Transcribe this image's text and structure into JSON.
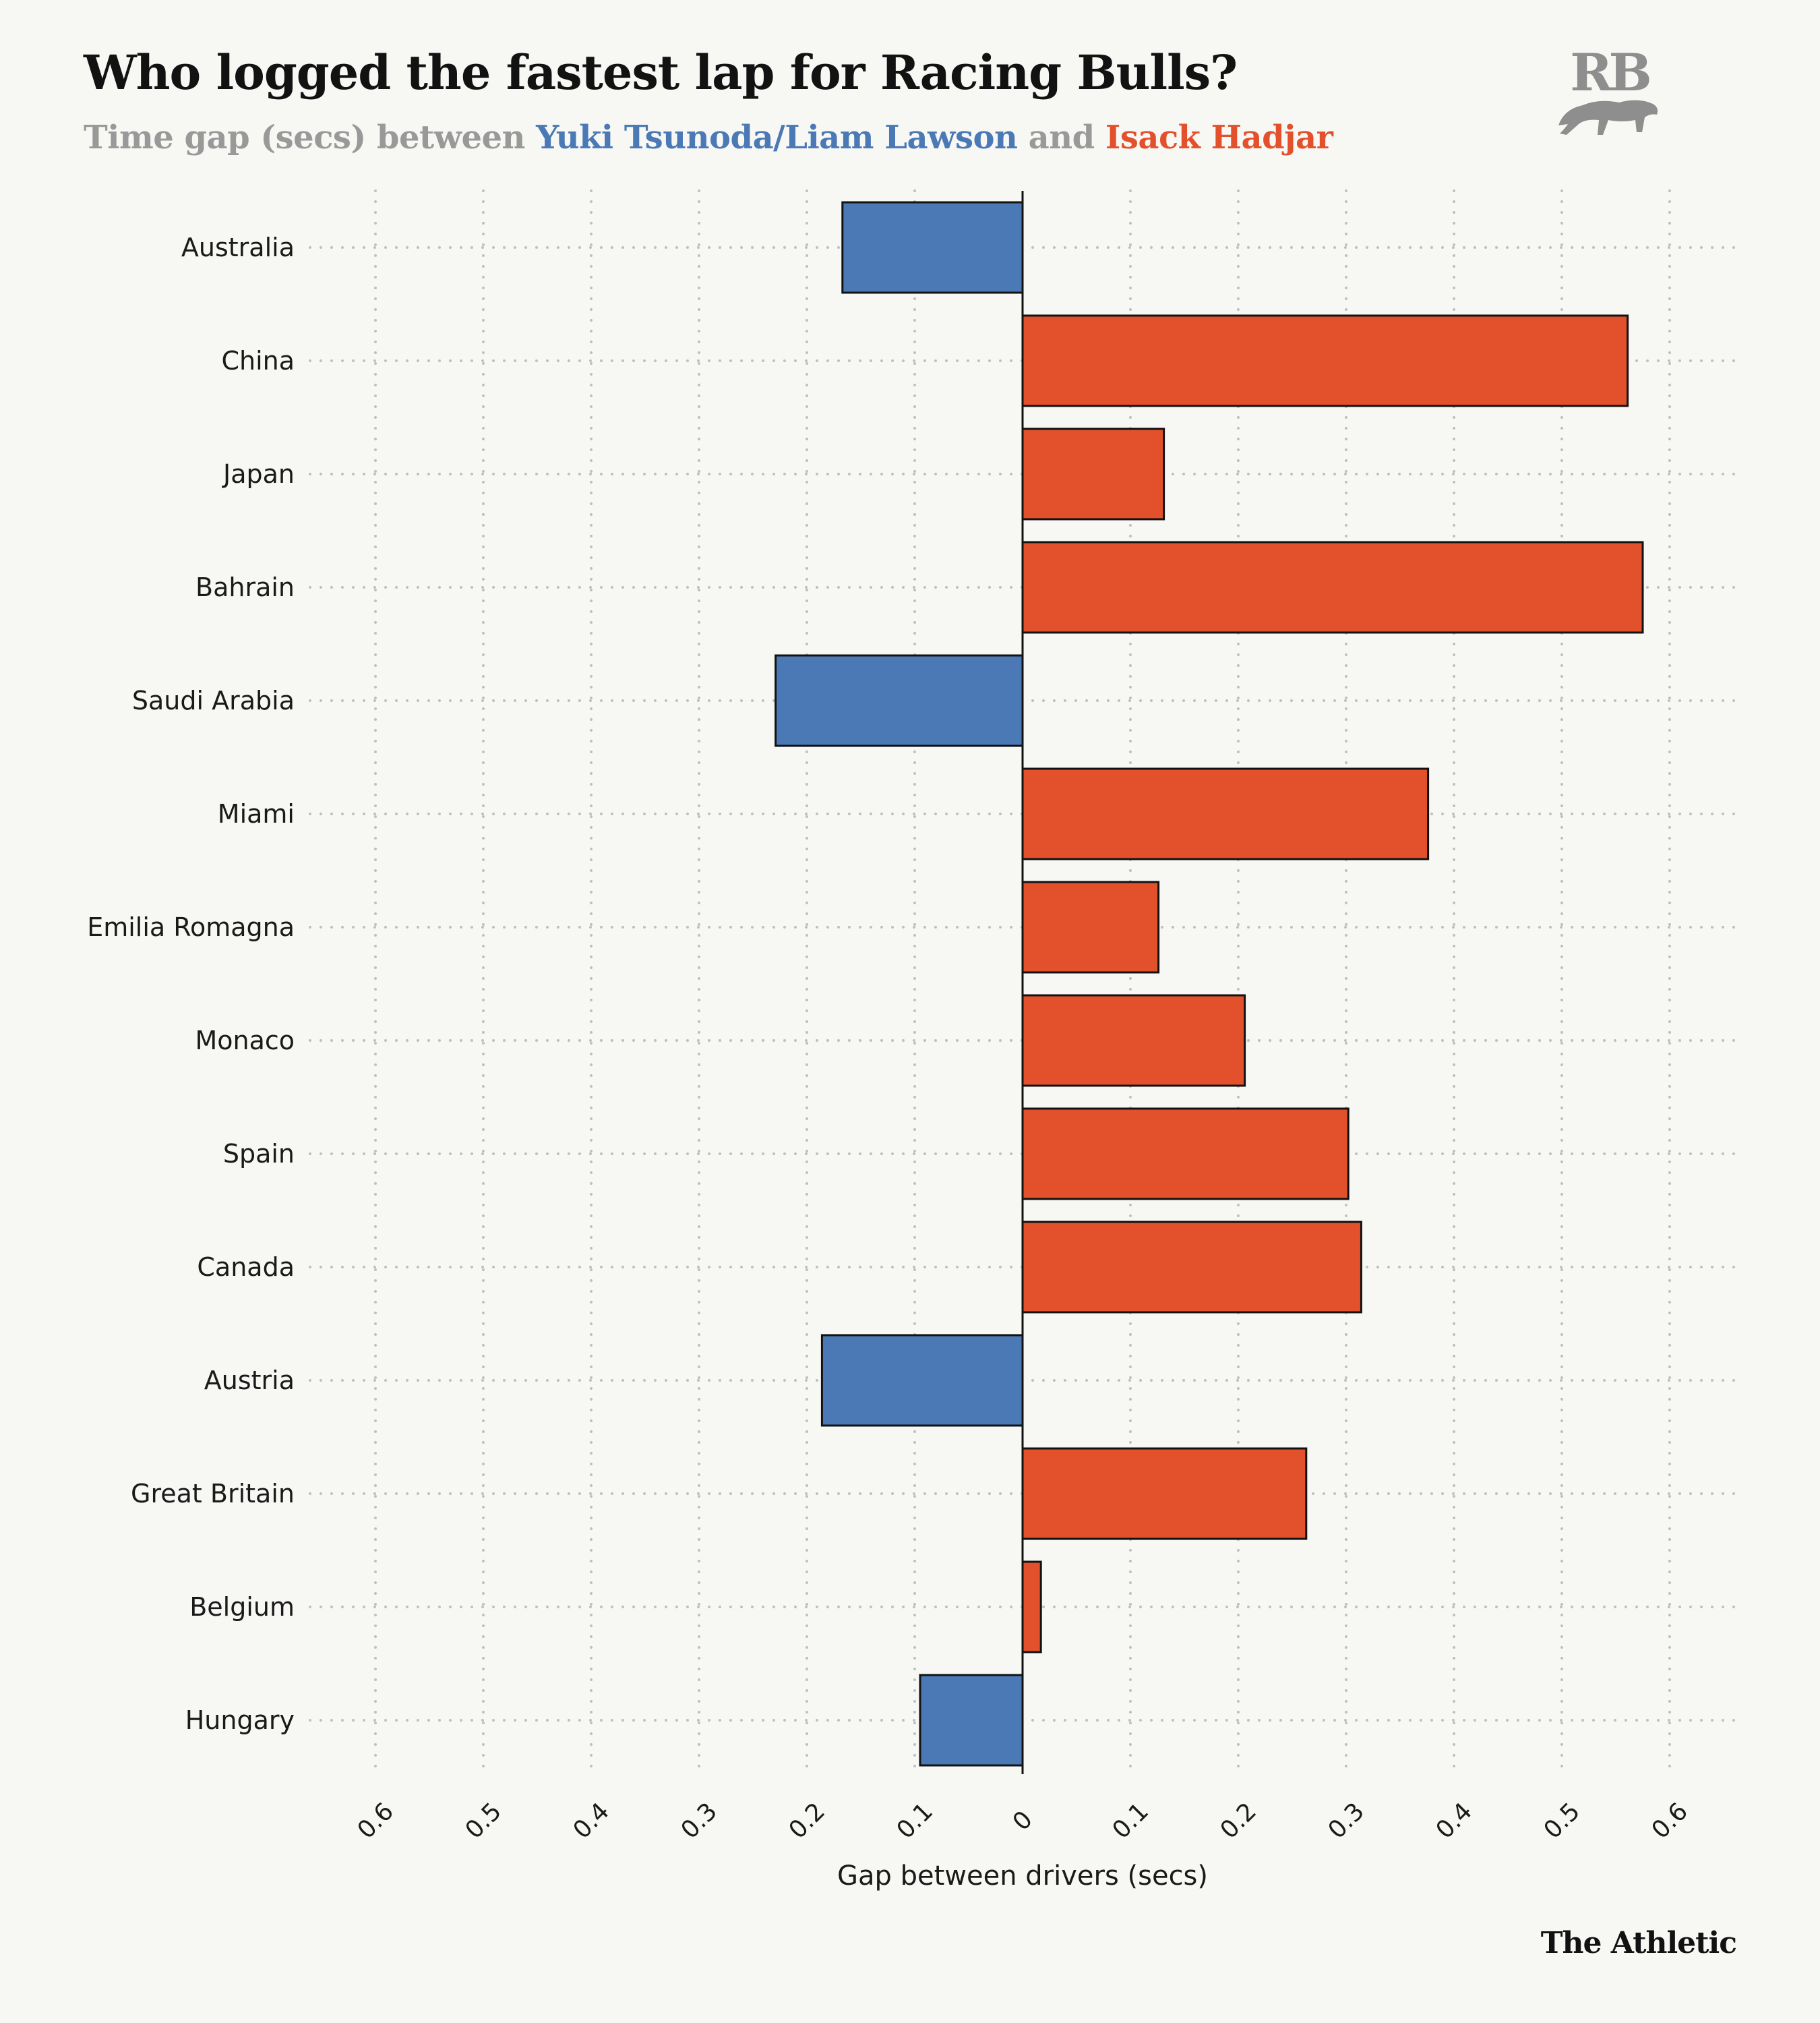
{
  "header": {
    "title": "Who logged the fastest lap for Racing Bulls?",
    "subtitle_prefix": "Time gap (secs) between ",
    "subtitle_series1": "Yuki Tsunoda/Liam Lawson",
    "subtitle_mid": " and ",
    "subtitle_series2": "Isack Hadjar"
  },
  "logo": {
    "text": "RB",
    "icon": "racing-bulls-logo"
  },
  "footer": {
    "brand": "The Athletic"
  },
  "colors": {
    "left_series": "#4a79b6",
    "right_series": "#e3512c",
    "axis": "#121212",
    "grid": "#bfbfbf",
    "background": "#f7f7f4"
  },
  "chart_data": {
    "type": "bar",
    "orientation": "horizontal-diverging",
    "categories": [
      "Australia",
      "China",
      "Japan",
      "Bahrain",
      "Saudi Arabia",
      "Miami",
      "Emilia Romagna",
      "Monaco",
      "Spain",
      "Canada",
      "Austria",
      "Great Britain",
      "Belgium",
      "Hungary"
    ],
    "series": [
      {
        "name": "Yuki Tsunoda/Liam Lawson",
        "side": "left",
        "values": [
          0.167,
          null,
          null,
          null,
          0.229,
          null,
          null,
          null,
          null,
          null,
          0.186,
          null,
          null,
          0.095
        ]
      },
      {
        "name": "Isack Hadjar",
        "side": "right",
        "values": [
          null,
          0.561,
          0.131,
          0.575,
          null,
          0.376,
          0.126,
          0.206,
          0.302,
          0.314,
          null,
          0.263,
          0.017,
          null
        ]
      }
    ],
    "xlabel": "Gap between drivers (secs)",
    "xlim": [
      -0.6,
      0.6
    ],
    "xticks": [
      -0.6,
      -0.5,
      -0.4,
      -0.3,
      -0.2,
      -0.1,
      0,
      0.1,
      0.2,
      0.3,
      0.4,
      0.5,
      0.6
    ],
    "xtick_labels": [
      "0.6",
      "0.5",
      "0.4",
      "0.3",
      "0.2",
      "0.1",
      "0",
      "0.1",
      "0.2",
      "0.3",
      "0.4",
      "0.5",
      "0.6"
    ],
    "grid": true,
    "legend": "subtitle"
  }
}
